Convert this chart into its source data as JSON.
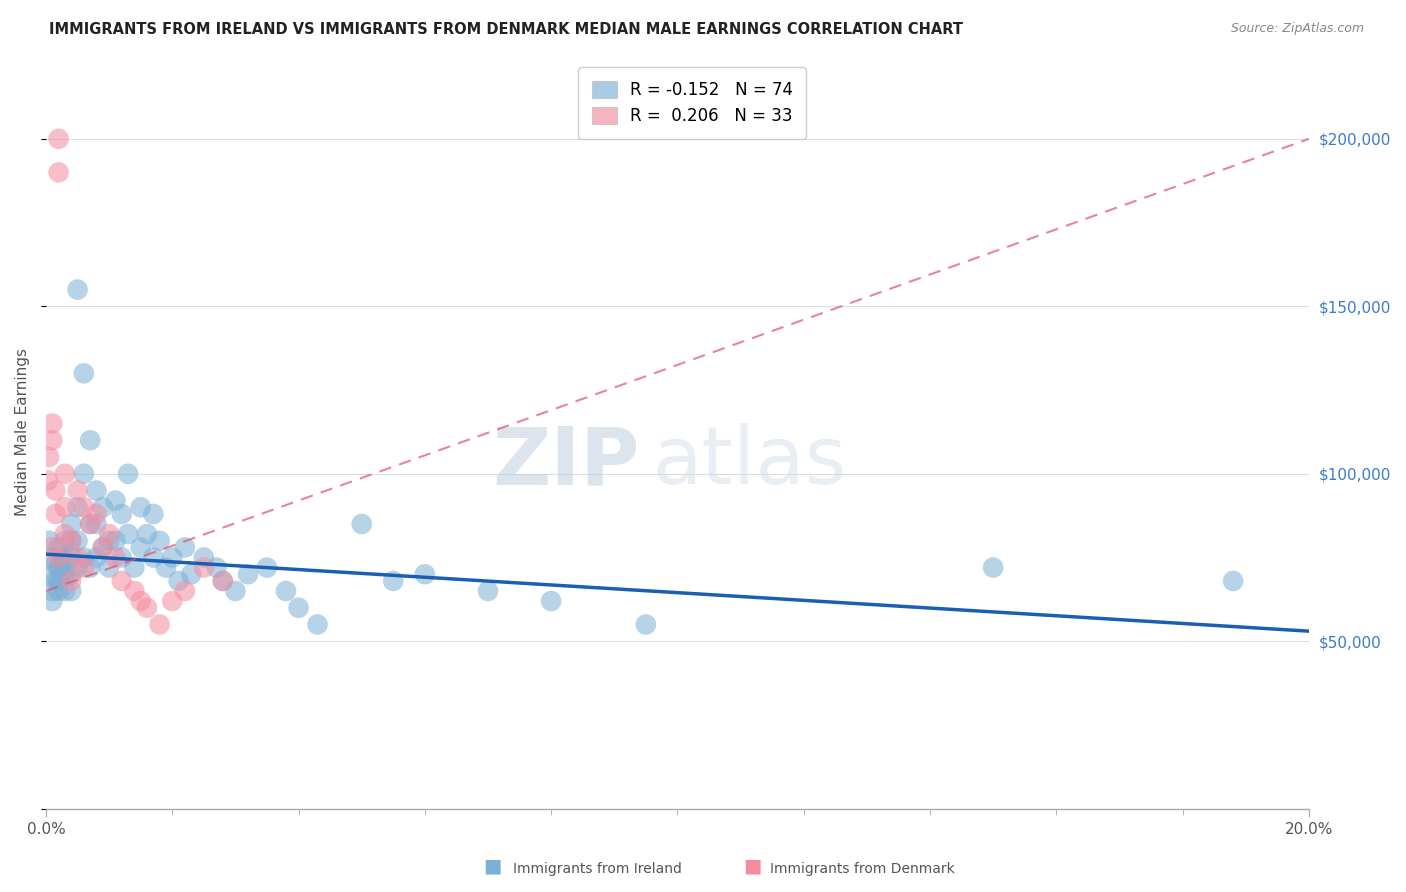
{
  "title": "IMMIGRANTS FROM IRELAND VS IMMIGRANTS FROM DENMARK MEDIAN MALE EARNINGS CORRELATION CHART",
  "source": "Source: ZipAtlas.com",
  "ylabel": "Median Male Earnings",
  "right_ytick_labels": [
    "$50,000",
    "$100,000",
    "$150,000",
    "$200,000"
  ],
  "right_ytick_values": [
    50000,
    100000,
    150000,
    200000
  ],
  "legend_entries": [
    {
      "label": "R = -0.152   N = 74",
      "color": "#a8c4e0"
    },
    {
      "label": "R =  0.206   N = 33",
      "color": "#f4a8b8"
    }
  ],
  "legend_bottom": [
    {
      "label": "Immigrants from Ireland",
      "color": "#a8c4e0"
    },
    {
      "label": "Immigrants from Denmark",
      "color": "#f4a8b8"
    }
  ],
  "ireland_color": "#7bafd4",
  "denmark_color": "#f48ca0",
  "ireland_trend_color": "#1a5fb4",
  "denmark_trend_color": "#e05070",
  "background_color": "#ffffff",
  "watermark_zip": "ZIP",
  "watermark_atlas": "atlas",
  "ireland_R": -0.152,
  "ireland_N": 74,
  "denmark_R": 0.206,
  "denmark_N": 33,
  "xlim": [
    0.0,
    0.2
  ],
  "ylim": [
    0,
    225000
  ],
  "ireland_x": [
    0.0005,
    0.001,
    0.001,
    0.001,
    0.001,
    0.0015,
    0.0015,
    0.002,
    0.002,
    0.002,
    0.002,
    0.0025,
    0.0025,
    0.003,
    0.003,
    0.003,
    0.003,
    0.004,
    0.004,
    0.004,
    0.004,
    0.004,
    0.005,
    0.005,
    0.005,
    0.005,
    0.006,
    0.006,
    0.006,
    0.007,
    0.007,
    0.007,
    0.008,
    0.008,
    0.008,
    0.009,
    0.009,
    0.01,
    0.01,
    0.011,
    0.011,
    0.012,
    0.012,
    0.013,
    0.013,
    0.014,
    0.015,
    0.015,
    0.016,
    0.017,
    0.017,
    0.018,
    0.019,
    0.02,
    0.021,
    0.022,
    0.023,
    0.025,
    0.027,
    0.028,
    0.03,
    0.032,
    0.035,
    0.038,
    0.04,
    0.043,
    0.05,
    0.055,
    0.06,
    0.07,
    0.08,
    0.095,
    0.15,
    0.188
  ],
  "ireland_y": [
    80000,
    75000,
    70000,
    65000,
    62000,
    73000,
    68000,
    78000,
    72000,
    68000,
    65000,
    75000,
    70000,
    80000,
    75000,
    70000,
    65000,
    85000,
    80000,
    75000,
    70000,
    65000,
    155000,
    90000,
    80000,
    72000,
    130000,
    100000,
    75000,
    110000,
    85000,
    72000,
    95000,
    85000,
    75000,
    90000,
    78000,
    80000,
    72000,
    92000,
    80000,
    88000,
    75000,
    100000,
    82000,
    72000,
    90000,
    78000,
    82000,
    88000,
    75000,
    80000,
    72000,
    75000,
    68000,
    78000,
    70000,
    75000,
    72000,
    68000,
    65000,
    70000,
    72000,
    65000,
    60000,
    55000,
    85000,
    68000,
    70000,
    65000,
    62000,
    55000,
    72000,
    68000
  ],
  "denmark_x": [
    0.0003,
    0.0005,
    0.001,
    0.001,
    0.001,
    0.0015,
    0.0015,
    0.002,
    0.002,
    0.002,
    0.003,
    0.003,
    0.003,
    0.004,
    0.004,
    0.005,
    0.005,
    0.006,
    0.006,
    0.007,
    0.008,
    0.009,
    0.01,
    0.011,
    0.012,
    0.014,
    0.015,
    0.016,
    0.018,
    0.02,
    0.022,
    0.025,
    0.028
  ],
  "denmark_y": [
    98000,
    105000,
    78000,
    115000,
    110000,
    95000,
    88000,
    200000,
    190000,
    75000,
    100000,
    90000,
    82000,
    80000,
    68000,
    95000,
    75000,
    90000,
    72000,
    85000,
    88000,
    78000,
    82000,
    75000,
    68000,
    65000,
    62000,
    60000,
    55000,
    62000,
    65000,
    72000,
    68000
  ]
}
